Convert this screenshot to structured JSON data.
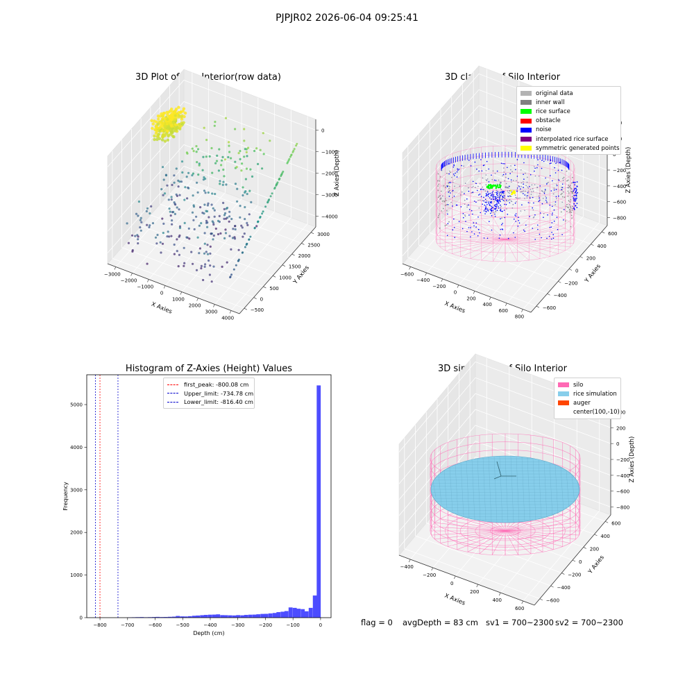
{
  "suptitle": "PJPJR02 2026-06-04 09:25:41",
  "chart_data": [
    {
      "type": "scatter3d",
      "title": "3D Plot of Silo Interior(row data)",
      "xlabel": "X Axies",
      "ylabel": "Y Axies",
      "zlabel": "Z Axies (Depth)",
      "xticks": [
        "−3000",
        "−2000",
        "−1000",
        "0",
        "1000",
        "2000",
        "3000",
        "4000"
      ],
      "yticks": [
        "−500",
        "0",
        "500",
        "1000",
        "1500",
        "2000",
        "2500",
        "3000"
      ],
      "zticks": [
        "0",
        "−1000",
        "−2000",
        "−3000",
        "−4000"
      ],
      "colormap": "viridis"
    },
    {
      "type": "scatter3d",
      "title": "3D classify of Silo Interior",
      "xlabel": "X Axies",
      "ylabel": "Y Axies",
      "zlabel": "Z Axies (Depth)",
      "xticks": [
        "−600",
        "−400",
        "−200",
        "0",
        "200",
        "400",
        "600",
        "800"
      ],
      "yticks": [
        "−600",
        "−400",
        "−200",
        "0",
        "200",
        "400",
        "600"
      ],
      "zticks": [
        "400",
        "200",
        "0",
        "−200",
        "−400",
        "−600",
        "−800"
      ],
      "legend": [
        {
          "label": "original data",
          "color": "#b3b3b3"
        },
        {
          "label": "inner wall",
          "color": "#808080"
        },
        {
          "label": "rice surface",
          "color": "#00ff00"
        },
        {
          "label": "obstacle",
          "color": "#ff0000"
        },
        {
          "label": "noise",
          "color": "#0000ff"
        },
        {
          "label": "interpolated rice surface",
          "color": "#800080"
        },
        {
          "label": "symmetric generated points",
          "color": "#ffff00"
        }
      ]
    },
    {
      "type": "bar",
      "title": "Histogram of Z-Axies (Height) Values",
      "xlabel": "Depth (cm)",
      "ylabel": "Frequency",
      "xlim": [
        -848,
        38
      ],
      "ylim": [
        0,
        5700
      ],
      "xticks": [
        -800,
        -700,
        -600,
        -500,
        -400,
        -300,
        -200,
        -100,
        0
      ],
      "yticks": [
        0,
        1000,
        2000,
        3000,
        4000,
        5000
      ],
      "bar_color": "#4d4dff",
      "bin_width": 14.6,
      "bins": [
        {
          "x": -700,
          "count": 8
        },
        {
          "x": -685,
          "count": 10
        },
        {
          "x": -671,
          "count": 12
        },
        {
          "x": -656,
          "count": 14
        },
        {
          "x": -642,
          "count": 10
        },
        {
          "x": -627,
          "count": 12
        },
        {
          "x": -612,
          "count": 15
        },
        {
          "x": -598,
          "count": 18
        },
        {
          "x": -583,
          "count": 14
        },
        {
          "x": -569,
          "count": 16
        },
        {
          "x": -554,
          "count": 20
        },
        {
          "x": -539,
          "count": 24
        },
        {
          "x": -525,
          "count": 40
        },
        {
          "x": -510,
          "count": 30
        },
        {
          "x": -496,
          "count": 28
        },
        {
          "x": -481,
          "count": 35
        },
        {
          "x": -466,
          "count": 45
        },
        {
          "x": -452,
          "count": 50
        },
        {
          "x": -437,
          "count": 58
        },
        {
          "x": -423,
          "count": 65
        },
        {
          "x": -408,
          "count": 70
        },
        {
          "x": -393,
          "count": 72
        },
        {
          "x": -379,
          "count": 78
        },
        {
          "x": -364,
          "count": 60
        },
        {
          "x": -350,
          "count": 58
        },
        {
          "x": -335,
          "count": 55
        },
        {
          "x": -320,
          "count": 52
        },
        {
          "x": -306,
          "count": 60
        },
        {
          "x": -291,
          "count": 55
        },
        {
          "x": -277,
          "count": 65
        },
        {
          "x": -262,
          "count": 70
        },
        {
          "x": -247,
          "count": 72
        },
        {
          "x": -233,
          "count": 80
        },
        {
          "x": -218,
          "count": 88
        },
        {
          "x": -204,
          "count": 90
        },
        {
          "x": -189,
          "count": 100
        },
        {
          "x": -174,
          "count": 110
        },
        {
          "x": -160,
          "count": 130
        },
        {
          "x": -145,
          "count": 140
        },
        {
          "x": -131,
          "count": 155
        },
        {
          "x": -116,
          "count": 240
        },
        {
          "x": -101,
          "count": 230
        },
        {
          "x": -87,
          "count": 210
        },
        {
          "x": -72,
          "count": 200
        },
        {
          "x": -58,
          "count": 150
        },
        {
          "x": -43,
          "count": 230
        },
        {
          "x": -28,
          "count": 520
        },
        {
          "x": -14,
          "count": 5450
        }
      ],
      "vlines": [
        {
          "label": "first_peak: -800.08 cm",
          "x": -800.08,
          "color": "#ff0000"
        },
        {
          "label": "Upper_limit: -734.78 cm",
          "x": -734.78,
          "color": "#0000cc"
        },
        {
          "label": "Lower_limit: -816.40 cm",
          "x": -816.4,
          "color": "#0000cc"
        }
      ]
    },
    {
      "type": "surface3d",
      "title": "3D simulation of Silo Interior",
      "xlabel": "X Axies",
      "ylabel": "Y Axies",
      "zlabel": "Z Axies (Depth)",
      "xticks": [
        "−400",
        "−200",
        "0",
        "200",
        "400",
        "600"
      ],
      "yticks": [
        "−600",
        "−400",
        "−200",
        "0",
        "200",
        "400",
        "600"
      ],
      "zticks": [
        "400",
        "200",
        "0",
        "−200",
        "−400",
        "−600",
        "−800"
      ],
      "legend": [
        {
          "label": "silo",
          "color": "#ff69b4"
        },
        {
          "label": "rice simulation",
          "color": "#87ceeb"
        },
        {
          "label": "auger",
          "color": "#ff4500"
        },
        {
          "label": "center(100,-10)",
          "color": "#ffffff"
        }
      ]
    }
  ],
  "status": {
    "flag": "flag = 0",
    "avg_depth": "avgDepth = 83 cm",
    "sv1": "sv1 = 700~2300",
    "sv2": "sv2 = 700~2300"
  }
}
